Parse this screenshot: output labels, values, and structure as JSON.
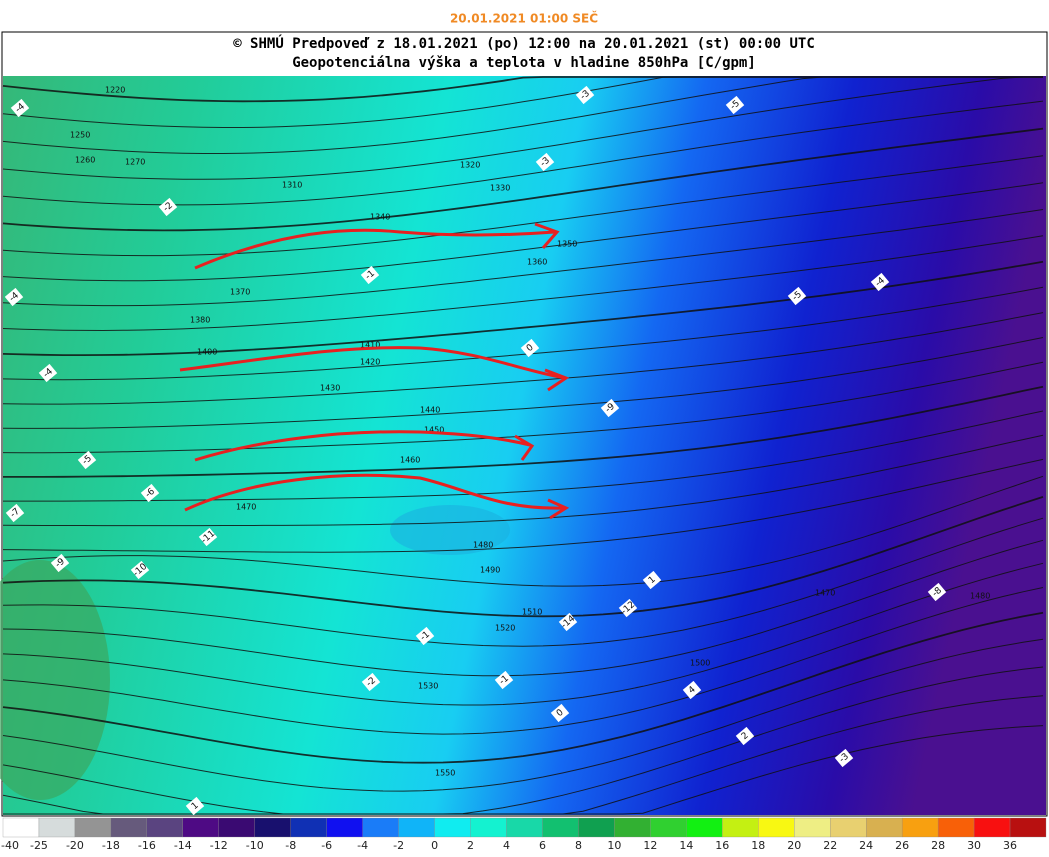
{
  "header": {
    "timestamp": "20.01.2021 01:00 SEČ",
    "title": "© SHMÚ Predpoveď z 18.01.2021 (po) 12:00 na 20.01.2021 (st) 00:00 UTC",
    "subtitle": "Geopotenciálna výška a teplota v hladine 850hPa [C/gpm]"
  },
  "map": {
    "contour_labels": [
      "1220",
      "1250",
      "1260",
      "1270",
      "1310",
      "1320",
      "1330",
      "1340",
      "1350",
      "1360",
      "1370",
      "1380",
      "1400",
      "1410",
      "1420",
      "1430",
      "1440",
      "1450",
      "1460",
      "1470",
      "1480",
      "1490",
      "1500",
      "1510",
      "1520",
      "1530",
      "1550",
      "1470",
      "1480"
    ],
    "temperature_labels": [
      "-4",
      "-3",
      "-3",
      "-2",
      "-1",
      "0",
      "-5",
      "-4",
      "-4",
      "-5",
      "-6",
      "-7",
      "-9",
      "-10",
      "-11",
      "-12",
      "-14",
      "-1",
      "-2",
      "-1",
      "0",
      "1",
      "1",
      "2",
      "4",
      "-3",
      "-4",
      "-5",
      "-9",
      "-8"
    ]
  },
  "legend": [
    {
      "label": -40,
      "color": "#ffffff"
    },
    {
      "label": -25,
      "color": "#d6dcdc"
    },
    {
      "label": -20,
      "color": "#949494"
    },
    {
      "label": -18,
      "color": "#665a7c"
    },
    {
      "label": -16,
      "color": "#5a4480"
    },
    {
      "label": -14,
      "color": "#4e0a84"
    },
    {
      "label": -12,
      "color": "#3a0a72"
    },
    {
      "label": -10,
      "color": "#18106e"
    },
    {
      "label": -8,
      "color": "#1030b4"
    },
    {
      "label": -6,
      "color": "#1010f0"
    },
    {
      "label": -4,
      "color": "#1a7cf8"
    },
    {
      "label": -2,
      "color": "#10b4f8"
    },
    {
      "label": 0,
      "color": "#10ecf0"
    },
    {
      "label": 2,
      "color": "#14f2d0"
    },
    {
      "label": 4,
      "color": "#18d8a8"
    },
    {
      "label": 6,
      "color": "#12c070"
    },
    {
      "label": 8,
      "color": "#10a050"
    },
    {
      "label": 10,
      "color": "#32b032"
    },
    {
      "label": 12,
      "color": "#30d030"
    },
    {
      "label": 14,
      "color": "#12f012"
    },
    {
      "label": 16,
      "color": "#c4f012"
    },
    {
      "label": 18,
      "color": "#f8f812"
    },
    {
      "label": 20,
      "color": "#eeee84"
    },
    {
      "label": 22,
      "color": "#e8d070"
    },
    {
      "label": 24,
      "color": "#d8b050"
    },
    {
      "label": 26,
      "color": "#f8a010"
    },
    {
      "label": 28,
      "color": "#f86008"
    },
    {
      "label": 30,
      "color": "#f81010"
    },
    {
      "label": 36,
      "color": "#b81010"
    }
  ]
}
